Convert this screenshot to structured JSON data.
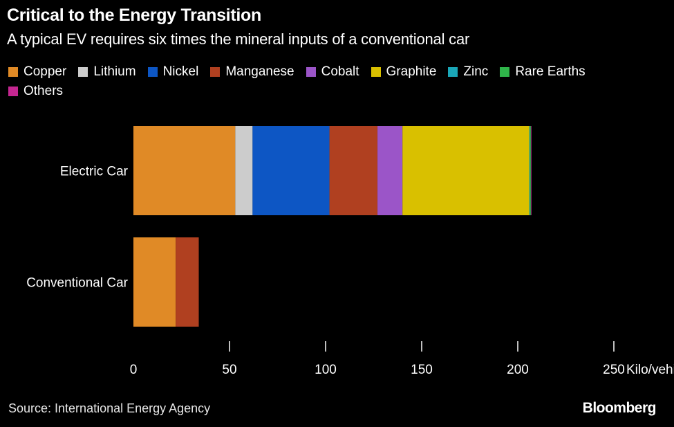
{
  "header": {
    "title": "Critical to the Energy Transition",
    "subtitle": "A typical EV requires six times the mineral inputs of a conventional car"
  },
  "footer": {
    "source": "Source: International Energy Agency",
    "brand": "Bloomberg"
  },
  "colors": {
    "background": "#000000",
    "Copper": "#e08a26",
    "Lithium": "#cccccc",
    "Nickel": "#0d56c4",
    "Manganese": "#b04020",
    "Cobalt": "#9b55c8",
    "Graphite": "#d9c000",
    "Zinc": "#1aa7b8",
    "Rare Earths": "#2fb54a",
    "Others": "#c42690"
  },
  "chart_data": {
    "type": "bar",
    "orientation": "horizontal",
    "stacked": true,
    "title": "Critical to the Energy Transition",
    "subtitle": "A typical EV requires six times the mineral inputs of a conventional car",
    "categories": [
      "Electric Car",
      "Conventional Car"
    ],
    "series": [
      {
        "name": "Copper",
        "values": [
          53,
          22
        ]
      },
      {
        "name": "Lithium",
        "values": [
          9,
          0
        ]
      },
      {
        "name": "Nickel",
        "values": [
          40,
          0
        ]
      },
      {
        "name": "Manganese",
        "values": [
          25,
          12
        ]
      },
      {
        "name": "Cobalt",
        "values": [
          13,
          0
        ]
      },
      {
        "name": "Graphite",
        "values": [
          66,
          0
        ]
      },
      {
        "name": "Zinc",
        "values": [
          0.3,
          0
        ]
      },
      {
        "name": "Rare Earths",
        "values": [
          0.5,
          0
        ]
      },
      {
        "name": "Others",
        "values": [
          0.3,
          0
        ]
      }
    ],
    "xlim": [
      0,
      250
    ],
    "xticks": [
      0,
      50,
      100,
      150,
      200,
      250
    ],
    "xlabel": "Kilo/vehicle",
    "grid": false,
    "legend": "top"
  }
}
